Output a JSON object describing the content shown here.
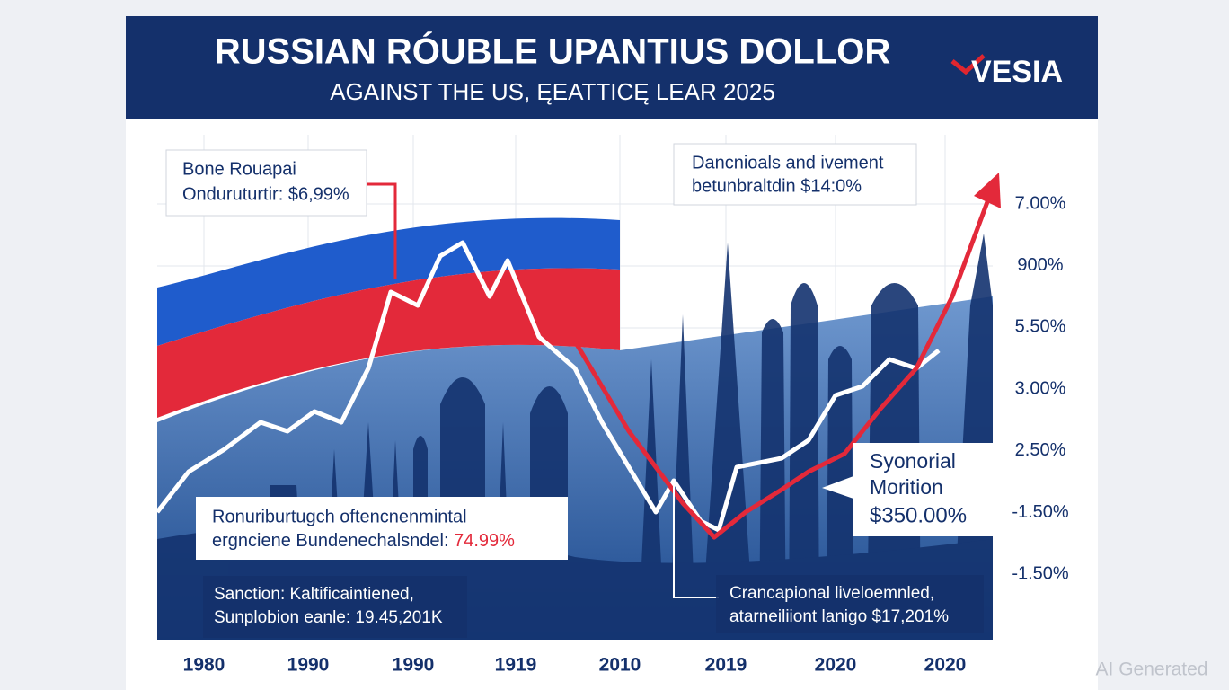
{
  "header": {
    "title": "RUSSIAN RÓUBLE UPANTIUS DOLLOR",
    "subtitle": "AGAINST THE US, ĘEATTICĘ LEAR 2025",
    "logo": "VESIA"
  },
  "callouts": [
    {
      "lines": [
        "Bone Rouapai",
        "Onduruturtir: $6,99%"
      ]
    },
    {
      "lines": [
        "Dancnioals and ivement",
        "betunbraltdin $14:0%"
      ]
    },
    {
      "lines": [
        "Ronuriburtugch oftencnenmintal",
        "ergnciene Bundenechalsndel: "
      ],
      "highlight": "74.99%"
    },
    {
      "lines": [
        "Syonorial",
        "Morition",
        "$350.00%"
      ]
    },
    {
      "lines": [
        "Sanction: Kaltificaintiened,",
        "Sunplobion eanle: 19.45,201K"
      ]
    },
    {
      "lines": [
        "Crancapional liveloemnled,",
        "atarneiliiont lanigo $17,201%"
      ]
    }
  ],
  "y_axis_labels": [
    "7.00%",
    "900%",
    "5.50%",
    "3.00%",
    "2.50%",
    "-1.50%",
    "-1.50%"
  ],
  "x_axis_labels": [
    "1980",
    "1990",
    "1990",
    "1919",
    "2010",
    "2019",
    "2020",
    "2020"
  ],
  "watermark": "AI Generated"
}
